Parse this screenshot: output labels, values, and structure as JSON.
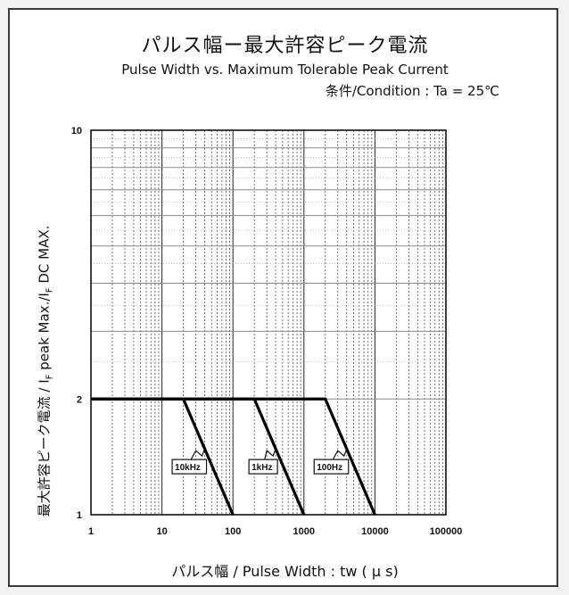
{
  "title_ja": "パルス幅ー最大許容ピーク電流",
  "title_en": "Pulse Width vs. Maximum Tolerable Peak Current",
  "condition": "条件/Condition : Ta = 25℃",
  "xlabel": "パルス幅 / Pulse Width : tw ( μ s)",
  "ylabel_main": "最大許容ピーク電流 / I",
  "ylabel_sub1": "F",
  "ylabel_mid": " peak Max./I",
  "ylabel_sub2": "F",
  "ylabel_end": " DC MAX.",
  "chart_data": {
    "type": "line",
    "x_scale": "log",
    "y_scale": "log",
    "xlim": [
      1,
      100000
    ],
    "ylim": [
      1,
      10
    ],
    "x_ticks": [
      "1",
      "10",
      "100",
      "1000",
      "10000",
      "100000"
    ],
    "y_ticks": [
      "1",
      "2",
      "10"
    ],
    "grid": true,
    "series": [
      {
        "name": "10kHz",
        "x": [
          1,
          20,
          100
        ],
        "y": [
          2,
          2,
          1
        ]
      },
      {
        "name": "1kHz",
        "x": [
          1,
          200,
          1000
        ],
        "y": [
          2,
          2,
          1
        ]
      },
      {
        "name": "100Hz",
        "x": [
          1,
          2000,
          10000
        ],
        "y": [
          2,
          2,
          1
        ]
      }
    ],
    "label_at_x": [
      40,
      400,
      4000
    ],
    "line_color": "#000000"
  }
}
